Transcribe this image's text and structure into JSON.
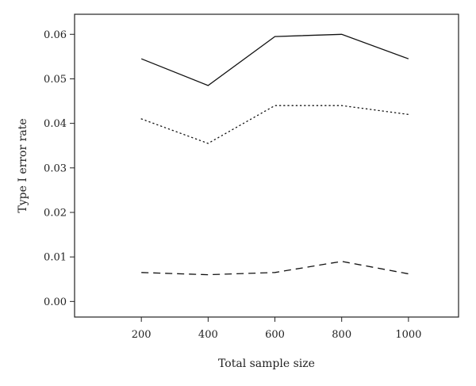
{
  "chart_data": {
    "type": "line",
    "title": "",
    "xlabel": "Total sample size",
    "ylabel": "Type I error rate",
    "x": [
      200,
      400,
      600,
      800,
      1000
    ],
    "x_ticks": [
      "200",
      "400",
      "600",
      "800",
      "1000"
    ],
    "y_ticks": [
      "0.00",
      "0.01",
      "0.02",
      "0.03",
      "0.04",
      "0.05",
      "0.06"
    ],
    "xlim": [
      0,
      1150
    ],
    "ylim": [
      -0.0035,
      0.0645
    ],
    "grid": false,
    "legend": "none",
    "series": [
      {
        "style": "solid",
        "values": [
          0.0545,
          0.0485,
          0.0595,
          0.06,
          0.0545
        ]
      },
      {
        "style": "dotted",
        "values": [
          0.041,
          0.0355,
          0.044,
          0.044,
          0.042
        ]
      },
      {
        "style": "dashed",
        "values": [
          0.0065,
          0.006,
          0.0065,
          0.009,
          0.0062
        ]
      }
    ]
  }
}
